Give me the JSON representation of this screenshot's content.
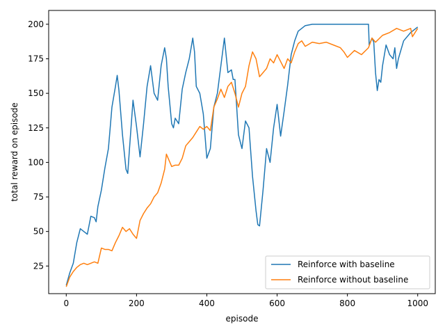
{
  "chart_data": {
    "type": "line",
    "xlabel": "episode",
    "ylabel": "total reward on episode",
    "xlim": [
      -50,
      1050
    ],
    "ylim": [
      5,
      210
    ],
    "xticks": [
      0,
      200,
      400,
      600,
      800,
      1000
    ],
    "yticks": [
      25,
      50,
      75,
      100,
      125,
      150,
      175,
      200
    ],
    "grid": false,
    "legend_position": "lower-right",
    "series": [
      {
        "name": "Reinforce with baseline",
        "color": "#1f77b4",
        "points": [
          [
            0,
            11
          ],
          [
            10,
            20
          ],
          [
            20,
            27
          ],
          [
            30,
            42
          ],
          [
            40,
            52
          ],
          [
            50,
            50
          ],
          [
            60,
            48
          ],
          [
            70,
            61
          ],
          [
            80,
            60
          ],
          [
            85,
            57
          ],
          [
            90,
            68
          ],
          [
            100,
            80
          ],
          [
            110,
            96
          ],
          [
            120,
            110
          ],
          [
            130,
            140
          ],
          [
            140,
            155
          ],
          [
            145,
            163
          ],
          [
            150,
            152
          ],
          [
            160,
            120
          ],
          [
            170,
            95
          ],
          [
            175,
            92
          ],
          [
            180,
            110
          ],
          [
            190,
            145
          ],
          [
            200,
            126
          ],
          [
            210,
            104
          ],
          [
            220,
            128
          ],
          [
            230,
            155
          ],
          [
            240,
            170
          ],
          [
            250,
            150
          ],
          [
            260,
            145
          ],
          [
            270,
            170
          ],
          [
            280,
            183
          ],
          [
            285,
            175
          ],
          [
            290,
            155
          ],
          [
            300,
            128
          ],
          [
            305,
            125
          ],
          [
            310,
            132
          ],
          [
            320,
            128
          ],
          [
            330,
            153
          ],
          [
            340,
            165
          ],
          [
            350,
            175
          ],
          [
            360,
            190
          ],
          [
            365,
            180
          ],
          [
            370,
            155
          ],
          [
            380,
            150
          ],
          [
            390,
            135
          ],
          [
            400,
            103
          ],
          [
            410,
            110
          ],
          [
            420,
            140
          ],
          [
            430,
            150
          ],
          [
            440,
            170
          ],
          [
            450,
            190
          ],
          [
            460,
            165
          ],
          [
            470,
            167
          ],
          [
            475,
            160
          ],
          [
            480,
            160
          ],
          [
            490,
            120
          ],
          [
            500,
            110
          ],
          [
            510,
            130
          ],
          [
            520,
            125
          ],
          [
            530,
            90
          ],
          [
            540,
            65
          ],
          [
            545,
            55
          ],
          [
            550,
            54
          ],
          [
            560,
            80
          ],
          [
            570,
            110
          ],
          [
            580,
            100
          ],
          [
            590,
            125
          ],
          [
            600,
            142
          ],
          [
            610,
            119
          ],
          [
            620,
            137
          ],
          [
            630,
            156
          ],
          [
            640,
            178
          ],
          [
            650,
            188
          ],
          [
            660,
            195
          ],
          [
            670,
            197
          ],
          [
            680,
            199
          ],
          [
            700,
            200
          ],
          [
            860,
            200
          ],
          [
            862,
            185
          ],
          [
            870,
            190
          ],
          [
            875,
            187
          ],
          [
            880,
            165
          ],
          [
            885,
            152
          ],
          [
            890,
            160
          ],
          [
            895,
            158
          ],
          [
            900,
            170
          ],
          [
            910,
            185
          ],
          [
            920,
            178
          ],
          [
            930,
            175
          ],
          [
            935,
            183
          ],
          [
            940,
            168
          ],
          [
            945,
            175
          ],
          [
            960,
            188
          ],
          [
            980,
            194
          ],
          [
            1000,
            198
          ]
        ]
      },
      {
        "name": "Reinforce without baseline",
        "color": "#ff7f0e",
        "points": [
          [
            0,
            10
          ],
          [
            10,
            17
          ],
          [
            20,
            21
          ],
          [
            30,
            24
          ],
          [
            40,
            26
          ],
          [
            50,
            27
          ],
          [
            60,
            26
          ],
          [
            70,
            27
          ],
          [
            80,
            28
          ],
          [
            90,
            27
          ],
          [
            100,
            38
          ],
          [
            110,
            37
          ],
          [
            120,
            37
          ],
          [
            130,
            36
          ],
          [
            140,
            42
          ],
          [
            150,
            47
          ],
          [
            160,
            53
          ],
          [
            170,
            50
          ],
          [
            180,
            52
          ],
          [
            190,
            48
          ],
          [
            200,
            45
          ],
          [
            210,
            58
          ],
          [
            220,
            63
          ],
          [
            230,
            67
          ],
          [
            240,
            70
          ],
          [
            250,
            75
          ],
          [
            260,
            78
          ],
          [
            270,
            85
          ],
          [
            280,
            95
          ],
          [
            285,
            106
          ],
          [
            290,
            103
          ],
          [
            295,
            100
          ],
          [
            300,
            97
          ],
          [
            310,
            98
          ],
          [
            320,
            98
          ],
          [
            330,
            103
          ],
          [
            340,
            112
          ],
          [
            350,
            115
          ],
          [
            360,
            118
          ],
          [
            370,
            122
          ],
          [
            380,
            126
          ],
          [
            390,
            124
          ],
          [
            400,
            126
          ],
          [
            410,
            123
          ],
          [
            420,
            140
          ],
          [
            430,
            146
          ],
          [
            440,
            153
          ],
          [
            450,
            147
          ],
          [
            460,
            155
          ],
          [
            470,
            158
          ],
          [
            480,
            150
          ],
          [
            490,
            140
          ],
          [
            500,
            150
          ],
          [
            510,
            155
          ],
          [
            520,
            170
          ],
          [
            530,
            180
          ],
          [
            540,
            175
          ],
          [
            550,
            162
          ],
          [
            560,
            165
          ],
          [
            570,
            168
          ],
          [
            580,
            175
          ],
          [
            590,
            172
          ],
          [
            600,
            178
          ],
          [
            610,
            173
          ],
          [
            620,
            168
          ],
          [
            630,
            175
          ],
          [
            640,
            172
          ],
          [
            650,
            180
          ],
          [
            660,
            186
          ],
          [
            670,
            188
          ],
          [
            680,
            184
          ],
          [
            700,
            187
          ],
          [
            720,
            186
          ],
          [
            740,
            187
          ],
          [
            760,
            185
          ],
          [
            780,
            183
          ],
          [
            790,
            180
          ],
          [
            800,
            176
          ],
          [
            820,
            181
          ],
          [
            840,
            178
          ],
          [
            860,
            183
          ],
          [
            870,
            190
          ],
          [
            880,
            187
          ],
          [
            900,
            192
          ],
          [
            920,
            194
          ],
          [
            940,
            197
          ],
          [
            960,
            195
          ],
          [
            970,
            196
          ],
          [
            980,
            197
          ],
          [
            985,
            191
          ],
          [
            1000,
            197
          ]
        ]
      }
    ]
  }
}
